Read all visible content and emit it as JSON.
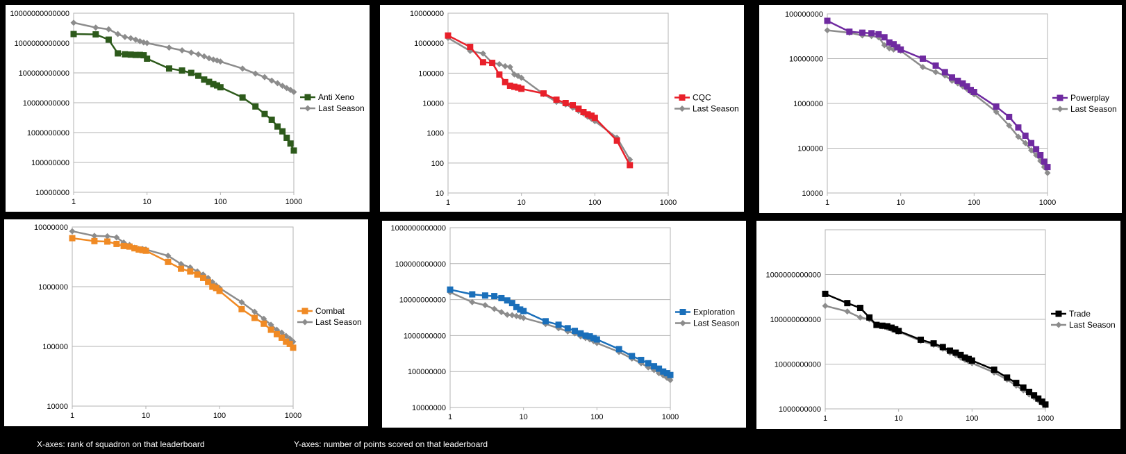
{
  "captions": {
    "x_axes": "X-axes: rank of squadron on that leaderboard",
    "y_axes": "Y-axes: number of points scored on that leaderboard"
  },
  "chart_data": [
    {
      "type": "line",
      "xscale": "log",
      "yscale": "log",
      "xlim": [
        1,
        1000
      ],
      "ylim": [
        10000000,
        10000000000000
      ],
      "xticks": [
        "1",
        "10",
        "100",
        "1000"
      ],
      "yticks": [
        "10000000",
        "100000000",
        "1000000000",
        "10000000000",
        "100000000000",
        "1000000000000",
        "10000000000000"
      ],
      "grid": true,
      "legend": "right",
      "series": [
        {
          "name": "Anti Xeno",
          "color": "#2d5a1b",
          "marker": "square",
          "x": [
            1,
            2,
            3,
            4,
            5,
            6,
            7,
            8,
            9,
            10,
            20,
            30,
            40,
            50,
            60,
            70,
            80,
            90,
            100,
            200,
            300,
            400,
            500,
            600,
            700,
            800,
            900,
            1000
          ],
          "y": [
            2000000000000,
            1950000000000,
            1300000000000,
            450000000000,
            420000000000,
            410000000000,
            400000000000,
            400000000000,
            390000000000,
            300000000000,
            140000000000,
            120000000000,
            100000000000,
            80000000000,
            60000000000,
            50000000000,
            42000000000,
            38000000000,
            33000000000,
            15000000000,
            7500000000,
            4200000000,
            2700000000,
            1600000000,
            1100000000,
            670000000,
            430000000,
            250000000
          ]
        },
        {
          "name": "Last Season",
          "color": "#8c8c8c",
          "marker": "diamond",
          "x": [
            1,
            2,
            3,
            4,
            5,
            6,
            7,
            8,
            9,
            10,
            20,
            30,
            40,
            50,
            60,
            70,
            80,
            90,
            100,
            200,
            300,
            400,
            500,
            600,
            700,
            800,
            900,
            1000
          ],
          "y": [
            4800000000000,
            3300000000000,
            2900000000000,
            2000000000000,
            1600000000000,
            1450000000000,
            1300000000000,
            1150000000000,
            1050000000000,
            1000000000000,
            700000000000,
            570000000000,
            480000000000,
            420000000000,
            360000000000,
            310000000000,
            280000000000,
            260000000000,
            240000000000,
            140000000000,
            95000000000,
            72000000000,
            55000000000,
            45000000000,
            37000000000,
            31000000000,
            27000000000,
            23000000000
          ]
        }
      ]
    },
    {
      "type": "line",
      "xscale": "log",
      "yscale": "log",
      "xlim": [
        1,
        1000
      ],
      "ylim": [
        10,
        10000000
      ],
      "xticks": [
        "1",
        "10",
        "100",
        "1000"
      ],
      "yticks": [
        "10",
        "100",
        "1000",
        "10000",
        "100000",
        "1000000",
        "10000000"
      ],
      "grid": true,
      "legend": "right",
      "series": [
        {
          "name": "CQC",
          "color": "#e8202a",
          "marker": "square",
          "x": [
            1,
            2,
            3,
            4,
            5,
            6,
            7,
            8,
            9,
            10,
            20,
            30,
            40,
            50,
            60,
            70,
            80,
            90,
            100,
            200,
            300
          ],
          "y": [
            1800000,
            750000,
            230000,
            220000,
            90000,
            50000,
            38000,
            35000,
            33000,
            30000,
            21000,
            13000,
            10000,
            8500,
            6500,
            5000,
            4200,
            3800,
            3200,
            560,
            85
          ]
        },
        {
          "name": "Last Season",
          "color": "#8c8c8c",
          "marker": "diamond",
          "x": [
            1,
            2,
            3,
            4,
            5,
            6,
            7,
            8,
            9,
            10,
            20,
            30,
            40,
            50,
            60,
            70,
            80,
            90,
            100,
            200,
            300
          ],
          "y": [
            1500000,
            550000,
            450000,
            220000,
            200000,
            170000,
            160000,
            90000,
            80000,
            70000,
            20000,
            11000,
            9000,
            7000,
            5500,
            4500,
            3500,
            3000,
            2500,
            700,
            130
          ]
        }
      ]
    },
    {
      "type": "line",
      "xscale": "log",
      "yscale": "log",
      "xlim": [
        1,
        1000
      ],
      "ylim": [
        10000,
        100000000
      ],
      "xticks": [
        "1",
        "10",
        "100",
        "1000"
      ],
      "yticks": [
        "10000",
        "100000",
        "1000000",
        "10000000",
        "100000000"
      ],
      "grid": true,
      "legend": "right",
      "series": [
        {
          "name": "Powerplay",
          "color": "#6f2aa0",
          "marker": "square",
          "x": [
            1,
            2,
            3,
            4,
            5,
            6,
            7,
            8,
            9,
            10,
            20,
            30,
            40,
            50,
            60,
            70,
            80,
            90,
            100,
            200,
            300,
            400,
            500,
            600,
            700,
            800,
            900,
            1000
          ],
          "y": [
            70000000,
            40000000,
            38000000,
            37000000,
            35000000,
            30000000,
            23000000,
            21000000,
            18000000,
            16000000,
            10000000,
            7000000,
            5000000,
            3800000,
            3200000,
            2800000,
            2400000,
            2000000,
            1800000,
            850000,
            500000,
            290000,
            190000,
            130000,
            95000,
            70000,
            50000,
            38000
          ]
        },
        {
          "name": "Last Season",
          "color": "#8c8c8c",
          "marker": "diamond",
          "x": [
            1,
            2,
            3,
            4,
            5,
            6,
            7,
            8,
            9,
            10,
            20,
            30,
            40,
            50,
            60,
            70,
            80,
            90,
            100,
            200,
            300,
            400,
            500,
            600,
            700,
            800,
            900,
            1000
          ],
          "y": [
            43000000,
            38000000,
            33000000,
            32000000,
            30000000,
            20000000,
            17000000,
            16000000,
            18000000,
            15000000,
            6500000,
            5000000,
            4200000,
            3200000,
            2800000,
            2400000,
            2100000,
            1800000,
            1600000,
            650000,
            320000,
            180000,
            130000,
            90000,
            70000,
            52000,
            38000,
            28000
          ]
        }
      ]
    },
    {
      "type": "line",
      "xscale": "log",
      "yscale": "log",
      "xlim": [
        1,
        1000
      ],
      "ylim": [
        10000,
        10000000
      ],
      "xticks": [
        "1",
        "10",
        "100",
        "1000"
      ],
      "yticks": [
        "10000",
        "100000",
        "1000000",
        "10000000"
      ],
      "grid": true,
      "legend": "right",
      "series": [
        {
          "name": "Combat",
          "color": "#f08a24",
          "marker": "square",
          "x": [
            1,
            2,
            3,
            4,
            5,
            6,
            7,
            8,
            9,
            10,
            20,
            30,
            40,
            50,
            60,
            70,
            80,
            90,
            100,
            200,
            300,
            400,
            500,
            600,
            700,
            800,
            900,
            1000
          ],
          "y": [
            6500000,
            5800000,
            5700000,
            5200000,
            4800000,
            4700000,
            4400000,
            4200000,
            4100000,
            4000000,
            2600000,
            2000000,
            1800000,
            1600000,
            1400000,
            1200000,
            1000000,
            950000,
            850000,
            420000,
            300000,
            240000,
            190000,
            160000,
            140000,
            120000,
            110000,
            95000
          ]
        },
        {
          "name": "Last Season",
          "color": "#8c8c8c",
          "marker": "diamond",
          "x": [
            1,
            2,
            3,
            4,
            5,
            6,
            7,
            8,
            9,
            10,
            20,
            30,
            40,
            50,
            60,
            70,
            80,
            90,
            100,
            200,
            300,
            400,
            500,
            600,
            700,
            800,
            900,
            1000
          ],
          "y": [
            8500000,
            7100000,
            7000000,
            6700000,
            5500000,
            5000000,
            4500000,
            4300000,
            4300000,
            4200000,
            3300000,
            2400000,
            2100000,
            1800000,
            1600000,
            1400000,
            1200000,
            1050000,
            950000,
            550000,
            380000,
            290000,
            230000,
            190000,
            170000,
            150000,
            135000,
            120000
          ]
        }
      ]
    },
    {
      "type": "line",
      "xscale": "log",
      "yscale": "log",
      "xlim": [
        1,
        1000
      ],
      "ylim": [
        10000000,
        1000000000000
      ],
      "xticks": [
        "1",
        "10",
        "100",
        "1000"
      ],
      "yticks": [
        "10000000",
        "100000000",
        "1000000000",
        "10000000000",
        "100000000000",
        "1000000000000"
      ],
      "grid": true,
      "legend": "right",
      "series": [
        {
          "name": "Exploration",
          "color": "#1a6fba",
          "marker": "square",
          "x": [
            1,
            2,
            3,
            4,
            5,
            6,
            7,
            8,
            9,
            10,
            20,
            30,
            40,
            50,
            60,
            70,
            80,
            90,
            100,
            200,
            300,
            400,
            500,
            600,
            700,
            800,
            900,
            1000
          ],
          "y": [
            19000000000,
            14000000000,
            13000000000,
            12500000000,
            11000000000,
            9500000000,
            8000000000,
            6200000000,
            5300000000,
            4800000000,
            2500000000,
            2000000000,
            1600000000,
            1350000000,
            1150000000,
            1000000000,
            950000000,
            850000000,
            780000000,
            420000000,
            270000000,
            210000000,
            170000000,
            140000000,
            120000000,
            100000000,
            90000000,
            80000000
          ]
        },
        {
          "name": "Last Season",
          "color": "#8c8c8c",
          "marker": "diamond",
          "x": [
            1,
            2,
            3,
            4,
            5,
            6,
            7,
            8,
            9,
            10,
            20,
            30,
            40,
            50,
            60,
            70,
            80,
            90,
            100,
            200,
            300,
            400,
            500,
            600,
            700,
            800,
            900,
            1000
          ],
          "y": [
            16000000000,
            8500000000,
            7000000000,
            5500000000,
            4500000000,
            3800000000,
            3700000000,
            3500000000,
            3300000000,
            3100000000,
            2100000000,
            1600000000,
            1300000000,
            1150000000,
            950000000,
            850000000,
            780000000,
            700000000,
            620000000,
            350000000,
            230000000,
            170000000,
            130000000,
            110000000,
            90000000,
            78000000,
            67000000,
            58000000
          ]
        }
      ]
    },
    {
      "type": "line",
      "xscale": "log",
      "yscale": "log",
      "xlim": [
        1,
        1000
      ],
      "ylim": [
        1000000000,
        10000000000000
      ],
      "xticks": [
        "1",
        "10",
        "100",
        "1000"
      ],
      "yticks": [
        "1000000000",
        "10000000000",
        "100000000000",
        "1000000000000"
      ],
      "grid": true,
      "legend": "right",
      "series": [
        {
          "name": "Trade",
          "color": "#000000",
          "marker": "square",
          "x": [
            1,
            2,
            3,
            4,
            5,
            6,
            7,
            8,
            9,
            10,
            20,
            30,
            40,
            50,
            60,
            70,
            80,
            90,
            100,
            200,
            300,
            400,
            500,
            600,
            700,
            800,
            900,
            1000
          ],
          "y": [
            370000000000,
            230000000000,
            180000000000,
            110000000000,
            75000000000,
            72000000000,
            70000000000,
            65000000000,
            60000000000,
            55000000000,
            35000000000,
            29000000000,
            24000000000,
            20000000000,
            18000000000,
            16000000000,
            14000000000,
            13000000000,
            12000000000,
            7500000000,
            5000000000,
            3800000000,
            3000000000,
            2400000000,
            2000000000,
            1700000000,
            1450000000,
            1250000000
          ]
        },
        {
          "name": "Last Season",
          "color": "#8c8c8c",
          "marker": "diamond",
          "x": [
            1,
            2,
            3,
            4,
            5,
            6,
            7,
            8,
            9,
            10,
            20,
            30,
            40,
            50,
            60,
            70,
            80,
            90,
            100,
            200,
            300,
            400,
            500,
            600,
            700,
            800,
            900,
            1000
          ],
          "y": [
            200000000000,
            150000000000,
            110000000000,
            100000000000,
            75000000000,
            70000000000,
            65000000000,
            60000000000,
            57000000000,
            53000000000,
            33000000000,
            27000000000,
            22000000000,
            18000000000,
            16000000000,
            14000000000,
            12500000000,
            11500000000,
            10500000000,
            6500000000,
            4500000000,
            3300000000,
            2600000000,
            2100000000,
            1800000000,
            1550000000,
            1350000000,
            1200000000
          ]
        }
      ]
    }
  ]
}
